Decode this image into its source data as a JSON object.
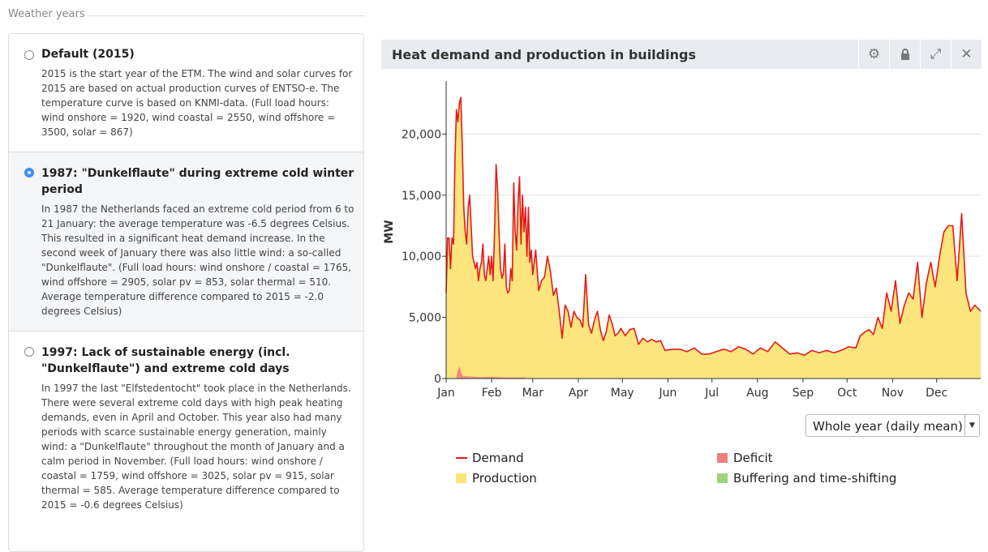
{
  "section": {
    "title": "Weather years"
  },
  "weather_options": [
    {
      "title": "Default (2015)",
      "description": "2015 is the start year of the ETM. The wind and solar curves for 2015 are based on actual production curves of ENTSO-e. The temperature curve is based on KNMI-data. (Full load hours: wind onshore = 1920, wind coastal = 2550, wind offshore = 3500, solar = 867)",
      "selected": false
    },
    {
      "title": "1987: \"Dunkelflaute\" during extreme cold winter period",
      "description": "In 1987 the Netherlands faced an extreme cold period from 6 to 21 January: the average temperature was -6.5 degrees Celsius. This resulted in a significant heat demand increase. In the second week of January there was also little wind: a so-called \"Dunkelflaute\". (Full load hours: wind onshore / coastal = 1765, wind offshore = 2905, solar pv = 853, solar thermal = 510. Average temperature difference compared to 2015 = -2.0 degrees Celsius)",
      "selected": true
    },
    {
      "title": "1997: Lack of sustainable energy (incl. \"Dunkelflaute\") and extreme cold days",
      "description": "In 1997 the last \"Elfstedentocht\" took place in the Netherlands. There were several extreme cold days with high peak heating demands, even in April and October. This year also had many periods with scarce sustainable energy generation, mainly wind: a \"Dunkelflaute\" throughout the month of January and a calm period in November. (Full load hours: wind onshore / coastal = 1759, wind offshore = 3025, solar pv = 915, solar thermal = 585. Average temperature difference compared to 2015 = -0.6 degrees Celsius)",
      "selected": false
    }
  ],
  "chart_panel": {
    "title": "Heat demand and production in buildings",
    "buttons": [
      {
        "name": "settings-icon",
        "glyph": "⚙"
      },
      {
        "name": "lock-icon",
        "glyph": "🔒"
      },
      {
        "name": "expand-icon",
        "glyph": "⤢"
      },
      {
        "name": "close-icon",
        "glyph": "✕"
      }
    ]
  },
  "period_select": {
    "value": "Whole year (daily mean)"
  },
  "chart_data": {
    "type": "area",
    "ylabel": "MW",
    "xlabel": "",
    "ylim": [
      0,
      24000
    ],
    "yticks": [
      0,
      5000,
      10000,
      15000,
      20000
    ],
    "ytick_labels": [
      "0",
      "5,000",
      "10,000",
      "15,000",
      "20,000"
    ],
    "xticks": [
      "Jan",
      "Feb",
      "Mar",
      "Apr",
      "May",
      "Jun",
      "Jul",
      "Aug",
      "Sep",
      "Oct",
      "Nov",
      "Dec"
    ],
    "legend": [
      {
        "label": "Demand",
        "color": "#e41a1c",
        "kind": "line"
      },
      {
        "label": "Deficit",
        "color": "#f08080",
        "kind": "box"
      },
      {
        "label": "Production",
        "color": "#fbe57c",
        "kind": "box"
      },
      {
        "label": "Buffering and time-shifting",
        "color": "#9fd47a",
        "kind": "box"
      }
    ],
    "series": [
      {
        "name": "Demand",
        "color": "#e41a1c",
        "x_days": [
          1,
          2,
          3,
          4,
          5,
          6,
          7,
          8,
          9,
          10,
          11,
          12,
          13,
          14,
          15,
          16,
          17,
          18,
          19,
          20,
          21,
          22,
          23,
          24,
          25,
          26,
          27,
          28,
          29,
          30,
          31,
          32,
          33,
          34,
          35,
          36,
          37,
          38,
          39,
          40,
          41,
          42,
          43,
          44,
          45,
          46,
          47,
          48,
          49,
          50,
          51,
          52,
          53,
          54,
          55,
          56,
          57,
          58,
          59,
          60,
          62,
          64,
          66,
          68,
          70,
          72,
          74,
          76,
          78,
          80,
          82,
          84,
          86,
          88,
          90,
          92,
          94,
          96,
          98,
          100,
          102,
          104,
          106,
          108,
          110,
          112,
          114,
          116,
          118,
          120,
          123,
          126,
          129,
          132,
          135,
          138,
          141,
          144,
          147,
          150,
          155,
          160,
          165,
          170,
          175,
          180,
          185,
          190,
          195,
          200,
          205,
          210,
          215,
          220,
          225,
          230,
          235,
          240,
          245,
          250,
          255,
          260,
          265,
          270,
          275,
          280,
          283,
          286,
          289,
          292,
          295,
          298,
          301,
          304,
          307,
          310,
          313,
          316,
          319,
          322,
          325,
          328,
          331,
          334,
          337,
          340,
          343,
          346,
          349,
          352,
          355,
          358,
          361,
          365
        ],
        "values": [
          7000,
          11500,
          11500,
          9000,
          11500,
          11000,
          18000,
          22000,
          21000,
          22500,
          23000,
          19000,
          14000,
          12000,
          11000,
          14000,
          15000,
          12500,
          10000,
          9500,
          9000,
          9500,
          8000,
          9000,
          9500,
          11000,
          8500,
          8000,
          9000,
          10000,
          8500,
          10000,
          8000,
          12000,
          17500,
          15500,
          12000,
          9000,
          8200,
          8600,
          11000,
          7500,
          7000,
          7200,
          9000,
          8000,
          16000,
          12000,
          10500,
          14500,
          16500,
          11000,
          15000,
          12000,
          14000,
          10000,
          14000,
          9500,
          10500,
          8500,
          10500,
          7200,
          8000,
          8300,
          10000,
          8800,
          6800,
          7400,
          5500,
          3300,
          6000,
          5500,
          4200,
          5500,
          5000,
          4800,
          4200,
          8500,
          4400,
          3700,
          4800,
          5500,
          4000,
          3100,
          3800,
          5200,
          4500,
          3500,
          3700,
          4100,
          3500,
          4000,
          4100,
          2800,
          3300,
          3000,
          3200,
          3000,
          3100,
          2300,
          2400,
          2400,
          2200,
          2500,
          2000,
          2000,
          2200,
          2400,
          2200,
          2600,
          2400,
          2000,
          2500,
          2200,
          3000,
          2500,
          2000,
          2100,
          1900,
          2300,
          2100,
          2300,
          2100,
          2300,
          2600,
          2500,
          3500,
          3800,
          4000,
          3600,
          5000,
          4100,
          7000,
          5500,
          8000,
          4500,
          6000,
          7000,
          6500,
          9500,
          5000,
          7800,
          9500,
          7500,
          10000,
          12000,
          12500,
          12500,
          8000,
          13500,
          7000,
          5500,
          6000,
          5500
        ]
      },
      {
        "name": "Production",
        "color": "#fbe57c",
        "follows": "Demand"
      },
      {
        "name": "Deficit",
        "color": "#f08080",
        "x_days": [
          8,
          9,
          10,
          11,
          12,
          13,
          14,
          20,
          25,
          30,
          38,
          45,
          55
        ],
        "values": [
          200,
          700,
          1000,
          600,
          300,
          150,
          200,
          150,
          100,
          150,
          100,
          80,
          100
        ]
      }
    ]
  }
}
